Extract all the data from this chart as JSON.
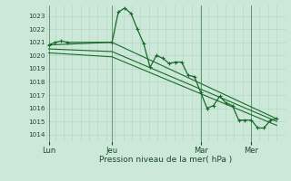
{
  "background_color": "#cce8d8",
  "grid_color_minor": "#b8d8c8",
  "grid_color_major": "#a0c8b0",
  "line_color": "#1a6b2a",
  "xlabel": "Pression niveau de la mer( hPa )",
  "ylim": [
    1013.5,
    1023.8
  ],
  "yticks": [
    1014,
    1015,
    1016,
    1017,
    1018,
    1019,
    1020,
    1021,
    1022,
    1023
  ],
  "xtick_labels": [
    "Lun",
    "Jeu",
    "Mar",
    "Mer"
  ],
  "xtick_positions": [
    0,
    30,
    72,
    96
  ],
  "vline_positions": [
    0,
    30,
    72,
    96
  ],
  "num_minor_vcols": 28,
  "xlim": [
    -1,
    112
  ],
  "series0": {
    "x": [
      0,
      3,
      6,
      9,
      30,
      33,
      36,
      39,
      42,
      45,
      48,
      51,
      54,
      57,
      60,
      63,
      66,
      69,
      72,
      75,
      78,
      81,
      84,
      87,
      90,
      93,
      96,
      99,
      102,
      105,
      108
    ],
    "y": [
      1020.8,
      1021.0,
      1021.1,
      1021.0,
      1021.0,
      1023.3,
      1023.6,
      1023.2,
      1022.0,
      1020.9,
      1019.1,
      1020.0,
      1019.8,
      1019.4,
      1019.5,
      1019.5,
      1018.5,
      1018.4,
      1017.2,
      1016.0,
      1016.2,
      1016.9,
      1016.4,
      1016.2,
      1015.1,
      1015.1,
      1015.1,
      1014.5,
      1014.5,
      1015.1,
      1015.2
    ]
  },
  "series_trends": [
    {
      "x": [
        0,
        30,
        108
      ],
      "y": [
        1020.8,
        1021.0,
        1015.2
      ]
    },
    {
      "x": [
        0,
        30,
        108
      ],
      "y": [
        1020.5,
        1020.3,
        1015.0
      ]
    },
    {
      "x": [
        0,
        30,
        108
      ],
      "y": [
        1020.2,
        1019.9,
        1014.7
      ]
    }
  ]
}
